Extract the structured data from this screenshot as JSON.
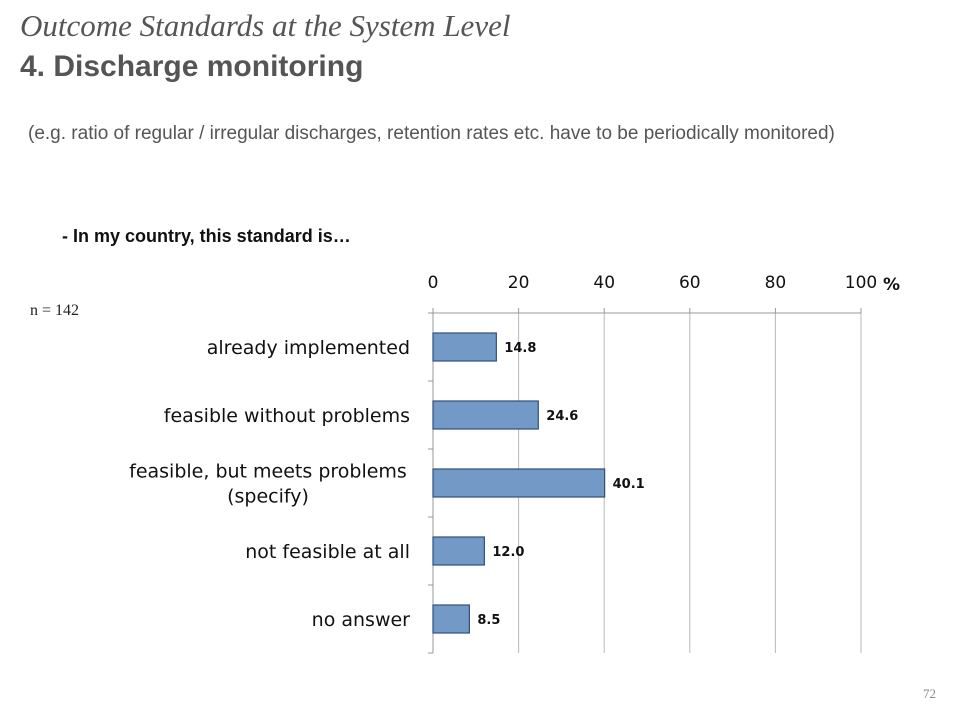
{
  "slide": {
    "title_italic": "Outcome Standards at the System Level",
    "title_bold": "4. Discharge monitoring",
    "note": "(e.g. ratio of regular / irregular discharges, retention rates etc. have to be periodically monitored)",
    "question": "- In my country, this standard is…",
    "sample_size": "n = 142",
    "page_number": "72"
  },
  "chart_data": {
    "type": "bar",
    "orientation": "horizontal",
    "categories": [
      [
        "already implemented"
      ],
      [
        "feasible without problems"
      ],
      [
        "feasible, but meets problems",
        "(specify)"
      ],
      [
        "not feasible at all"
      ],
      [
        "no answer"
      ]
    ],
    "values": [
      14.8,
      24.6,
      40.1,
      12.0,
      8.5
    ],
    "value_labels": [
      "14.8",
      "24.6",
      "40.1",
      "12.0",
      "8.5"
    ],
    "x_ticks": [
      0,
      20,
      40,
      60,
      80,
      100
    ],
    "xlim": [
      0,
      100
    ],
    "x_unit": "%",
    "x_axis_position": "top",
    "grid": true,
    "bar_color": "#7399C6",
    "bar_border_color": "#2F4F7A"
  }
}
